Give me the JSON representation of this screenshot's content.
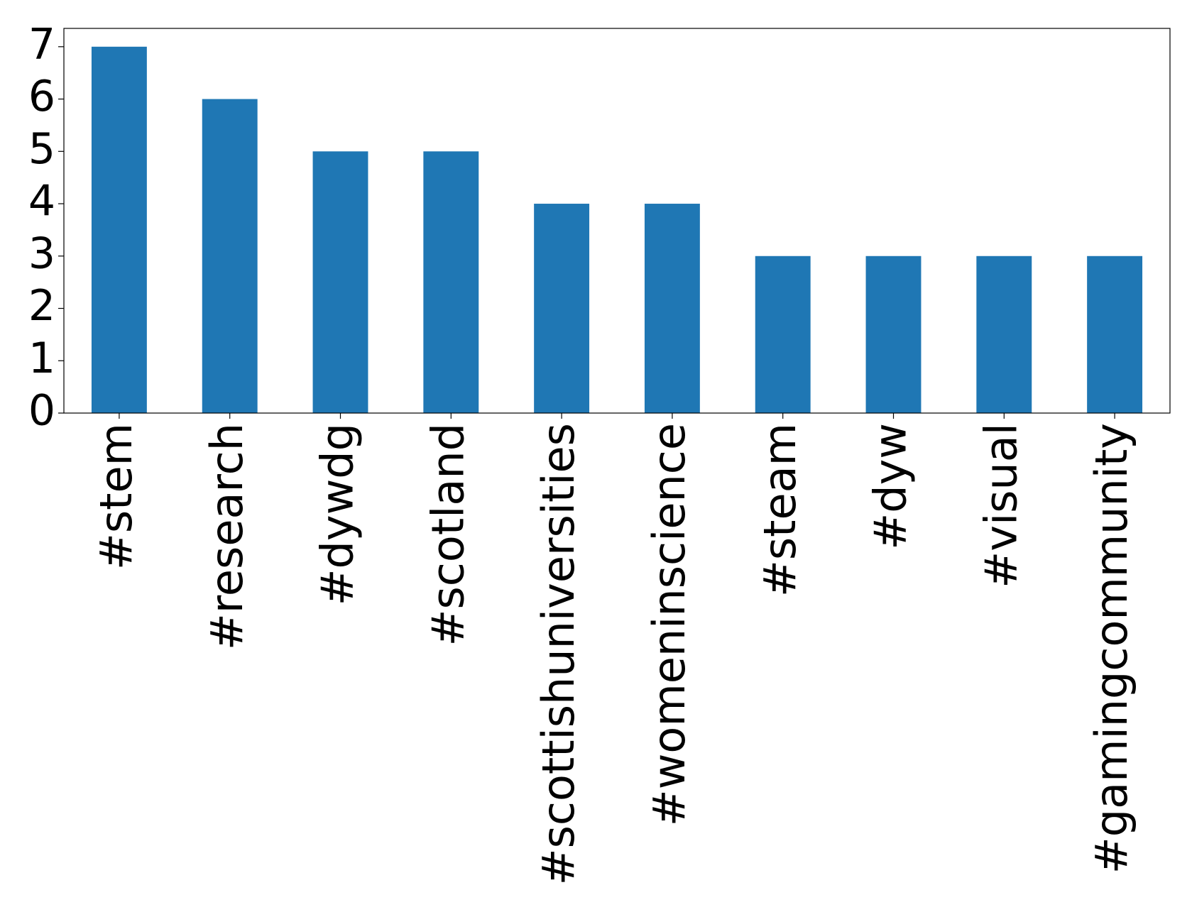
{
  "chart_data": {
    "type": "bar",
    "categories": [
      "#stem",
      "#research",
      "#dywdg",
      "#scotland",
      "#scottishuniversities",
      "#womeninscience",
      "#steam",
      "#dyw",
      "#visual",
      "#gamingcommunity"
    ],
    "values": [
      7,
      6,
      5,
      5,
      4,
      4,
      3,
      3,
      3,
      3
    ],
    "color": "#1f77b4",
    "ylim": [
      0,
      7.35
    ],
    "yticks": [
      0,
      1,
      2,
      3,
      4,
      5,
      6,
      7
    ],
    "grid": false
  }
}
